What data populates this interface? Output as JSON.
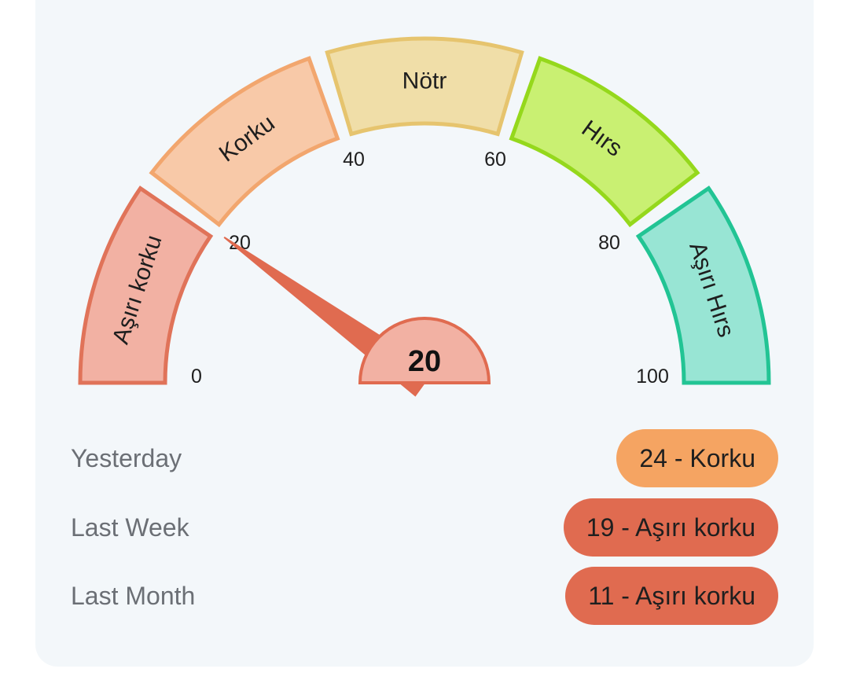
{
  "gauge": {
    "value": 20,
    "value_label": "20",
    "ticks": [
      "0",
      "20",
      "40",
      "60",
      "80",
      "100"
    ],
    "segments": [
      {
        "label": "Aşırı korku",
        "from": 0,
        "to": 20,
        "fill": "#f2b1a3",
        "stroke": "#e07359"
      },
      {
        "label": "Korku",
        "from": 20,
        "to": 40,
        "fill": "#f8c9a8",
        "stroke": "#f2a66e"
      },
      {
        "label": "Nötr",
        "from": 40,
        "to": 60,
        "fill": "#f0dea8",
        "stroke": "#e6c46e"
      },
      {
        "label": "Hırs",
        "from": 60,
        "to": 80,
        "fill": "#c9f072",
        "stroke": "#95d81c"
      },
      {
        "label": "Aşırı Hırs",
        "from": 80,
        "to": 100,
        "fill": "#98e5d4",
        "stroke": "#22c494"
      }
    ],
    "needle_color": "#e06b50",
    "hub_fill": "#f2b1a3"
  },
  "history": [
    {
      "label": "Yesterday",
      "value": "24 - Korku",
      "color": "#f5a462"
    },
    {
      "label": "Last Week",
      "value": "19 - Aşırı korku",
      "color": "#e06b50"
    },
    {
      "label": "Last Month",
      "value": "11 - Aşırı korku",
      "color": "#e06b50"
    }
  ]
}
